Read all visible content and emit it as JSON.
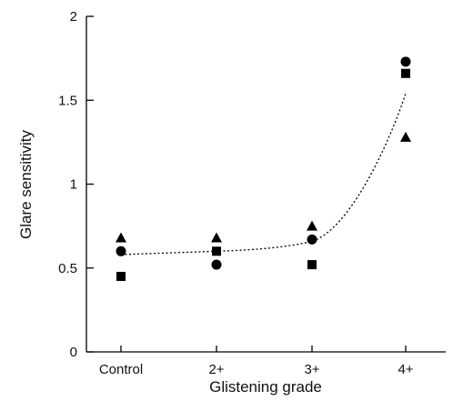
{
  "chart_data": {
    "type": "scatter",
    "xlabel": "Glistening grade",
    "ylabel": "Glare sensitivity",
    "categories": [
      "Control",
      "2+",
      "3+",
      "4+"
    ],
    "ylim": [
      0,
      2
    ],
    "yticks": [
      0,
      0.5,
      1,
      1.5,
      2
    ],
    "ytick_labels": [
      "0",
      "0.5",
      "1",
      "1.5",
      "2"
    ],
    "grid": false,
    "legend": "none",
    "series": [
      {
        "marker": "circle",
        "color": "#000000",
        "values": [
          0.6,
          0.52,
          0.67,
          1.73
        ]
      },
      {
        "marker": "square",
        "color": "#000000",
        "values": [
          0.45,
          0.6,
          0.52,
          1.66
        ]
      },
      {
        "marker": "triangle",
        "color": "#000000",
        "values": [
          0.68,
          0.68,
          0.75,
          1.28
        ]
      }
    ],
    "trend_line": {
      "style": "dotted",
      "color": "#000000",
      "points": [
        {
          "x": "Control",
          "y": 0.58
        },
        {
          "x": "2+",
          "y": 0.6
        },
        {
          "x": "3+",
          "y": 0.66
        },
        {
          "x": "4+",
          "y": 1.54
        }
      ]
    }
  }
}
